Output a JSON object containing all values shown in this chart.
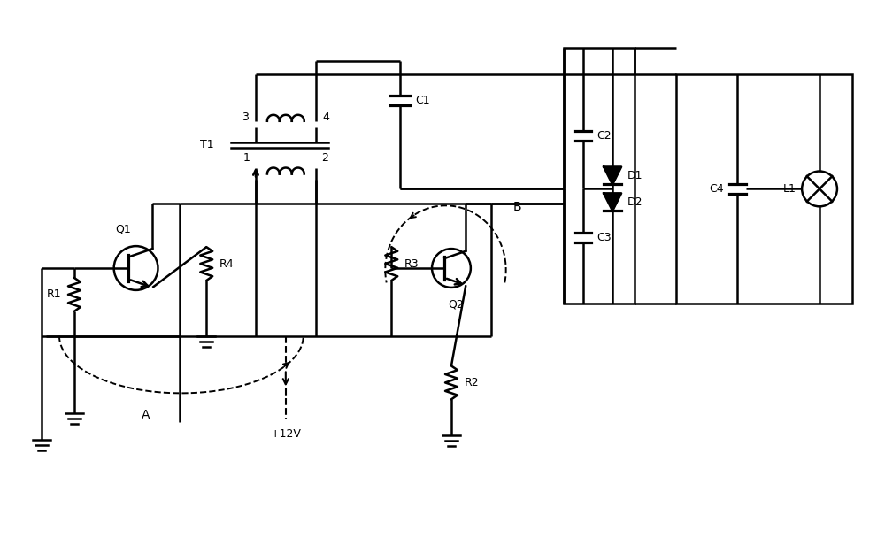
{
  "bg_color": "#ffffff",
  "lw": 1.8,
  "figsize": [
    10.0,
    6.08
  ],
  "dpi": 100,
  "xlim": [
    0,
    10
  ],
  "ylim": [
    0,
    6.08
  ]
}
